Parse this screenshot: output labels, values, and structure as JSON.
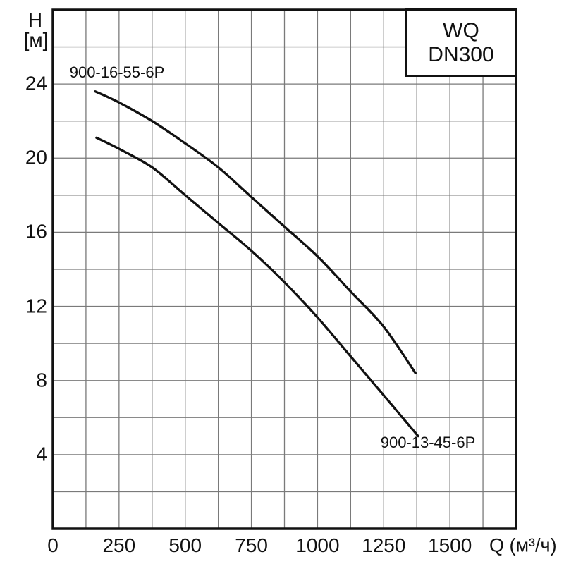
{
  "title_box": {
    "line1": "WQ",
    "line2": "DN300"
  },
  "axes": {
    "y_title_line1": "H",
    "y_title_line2": "[м]",
    "y_ticks": [
      "24",
      "20",
      "16",
      "12",
      "8",
      "4"
    ],
    "x_ticks": [
      "0",
      "250",
      "500",
      "750",
      "1000",
      "1250",
      "1500"
    ],
    "x_unit": "Q (м³/ч)"
  },
  "colors": {
    "background": "#ffffff",
    "grid": "#7a7a7a",
    "axis_border": "#111111",
    "curve": "#111111",
    "text": "#111111"
  },
  "chart_data": {
    "type": "line",
    "title": "WQ DN300",
    "xlabel": "Q (м³/ч)",
    "ylabel": "H [м]",
    "xlim": [
      0,
      1750
    ],
    "ylim": [
      0,
      28
    ],
    "x_grid_step": 125,
    "y_grid_step": 2,
    "x_tick_step": 250,
    "y_tick_step": 4,
    "x_tick_values": [
      0,
      250,
      500,
      750,
      1000,
      1250,
      1500
    ],
    "y_tick_values": [
      24,
      20,
      16,
      12,
      8,
      4
    ],
    "grid": true,
    "legend_position": "labels-on-chart",
    "series": [
      {
        "name": "900-16-55-6P",
        "points": [
          [
            160,
            23.6
          ],
          [
            250,
            23.0
          ],
          [
            375,
            22.0
          ],
          [
            500,
            20.8
          ],
          [
            625,
            19.5
          ],
          [
            750,
            17.9
          ],
          [
            875,
            16.3
          ],
          [
            1000,
            14.7
          ],
          [
            1125,
            12.8
          ],
          [
            1250,
            10.9
          ],
          [
            1370,
            8.4
          ]
        ]
      },
      {
        "name": "900-13-45-6P",
        "points": [
          [
            165,
            21.1
          ],
          [
            250,
            20.5
          ],
          [
            375,
            19.5
          ],
          [
            500,
            18.0
          ],
          [
            625,
            16.5
          ],
          [
            750,
            15.0
          ],
          [
            875,
            13.3
          ],
          [
            1000,
            11.4
          ],
          [
            1125,
            9.3
          ],
          [
            1250,
            7.2
          ],
          [
            1380,
            5.0
          ]
        ]
      }
    ]
  }
}
